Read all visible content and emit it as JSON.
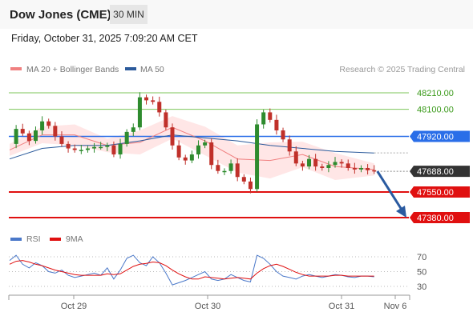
{
  "header": {
    "title": "Dow Jones (CME)",
    "timeframe": "30 MIN",
    "datetime": "Friday, October 31, 2025 7:09:20 AM CET"
  },
  "legend": {
    "items": [
      {
        "label": "MA 20 + Bollinger Bands",
        "color": "#f08080"
      },
      {
        "label": "MA 50",
        "color": "#2b5a9b"
      }
    ],
    "credit": "Research © 2025 Trading Central"
  },
  "rsi_legend": {
    "items": [
      {
        "label": "RSI",
        "color": "#4a78c9"
      },
      {
        "label": "9MA",
        "color": "#e01010"
      }
    ]
  },
  "chart_data": {
    "type": "line",
    "series": [
      {
        "name": "Price (candlestick)",
        "x": [
          0,
          4,
          8,
          12,
          16,
          20,
          24,
          28,
          32,
          36,
          40,
          44,
          48,
          52,
          56,
          60,
          64,
          68,
          72,
          76,
          80,
          84,
          88,
          92,
          96,
          100,
          104,
          108,
          112,
          116,
          120,
          124,
          128,
          132,
          136,
          140,
          144,
          148,
          152,
          156,
          160,
          164,
          168,
          172,
          176,
          180,
          184,
          188,
          192,
          196,
          200,
          204,
          208,
          212,
          216,
          220,
          224
        ],
        "values": [
          47870,
          47970,
          47940,
          47890,
          47960,
          48020,
          47990,
          47920,
          47870,
          47840,
          47830,
          47830,
          47840,
          47850,
          47850,
          47860,
          47800,
          47870,
          47950,
          47980,
          48180,
          48160,
          48150,
          48080,
          47980,
          47860,
          47780,
          47760,
          47800,
          47860,
          47880,
          47730,
          47690,
          47690,
          47740,
          47650,
          47620,
          47570,
          48000,
          48080,
          48030,
          47960,
          47900,
          47820,
          47740,
          47720,
          47770,
          47720,
          47710,
          47730,
          47750,
          47740,
          47710,
          47700,
          47710,
          47695,
          47688
        ]
      },
      {
        "name": "MA 20",
        "x": [
          0,
          20,
          40,
          60,
          80,
          100,
          120,
          140,
          160,
          180,
          200,
          224
        ],
        "values": [
          47830,
          47930,
          47930,
          47860,
          47880,
          47980,
          47890,
          47770,
          47760,
          47800,
          47720,
          47700
        ]
      },
      {
        "name": "MA 50",
        "x": [
          0,
          20,
          40,
          60,
          80,
          100,
          120,
          140,
          160,
          180,
          200,
          224
        ],
        "values": [
          47770,
          47840,
          47860,
          47860,
          47890,
          47930,
          47910,
          47890,
          47860,
          47840,
          47820,
          47810
        ]
      }
    ],
    "price_levels": [
      {
        "value": 48210.0,
        "label": "48210.00",
        "style": "resistance-thin",
        "color": "#7cc45a"
      },
      {
        "value": 48100.0,
        "label": "48100.00",
        "style": "resistance-thin",
        "color": "#7cc45a"
      },
      {
        "value": 47920.0,
        "label": "47920.00",
        "style": "pivot",
        "color": "#2a6ee8"
      },
      {
        "value": 47688.0,
        "label": "47688.00",
        "style": "last-price",
        "color": "#333333"
      },
      {
        "value": 47550.0,
        "label": "47550.00",
        "style": "support",
        "color": "#e01010"
      },
      {
        "value": 47380.0,
        "label": "47380.00",
        "style": "support",
        "color": "#e01010"
      }
    ],
    "forecast_arrow": {
      "from": 47688,
      "to": 47380,
      "color": "#2a5aa0"
    },
    "rsi": {
      "ticks": [
        "70",
        "50",
        "30"
      ],
      "tick_values": [
        70,
        50,
        30
      ],
      "rsi_values": [
        65,
        72,
        60,
        55,
        62,
        58,
        50,
        48,
        52,
        45,
        42,
        44,
        46,
        48,
        45,
        55,
        40,
        52,
        68,
        72,
        62,
        58,
        70,
        62,
        48,
        32,
        35,
        38,
        42,
        46,
        50,
        40,
        38,
        40,
        46,
        42,
        38,
        36,
        72,
        68,
        60,
        50,
        44,
        42,
        40,
        44,
        46,
        44,
        42,
        44,
        46,
        45,
        43,
        42,
        44,
        44,
        43
      ],
      "ma_values": [
        60,
        64,
        65,
        63,
        60,
        58,
        55,
        52,
        50,
        48,
        46,
        45,
        45,
        45,
        45,
        47,
        46,
        47,
        52,
        57,
        60,
        61,
        63,
        62,
        58,
        52,
        47,
        43,
        40,
        40,
        43,
        42,
        41,
        40,
        41,
        42,
        41,
        40,
        48,
        54,
        58,
        60,
        57,
        53,
        49,
        46,
        44,
        44,
        44,
        44,
        45,
        45,
        44,
        44,
        44,
        44,
        44
      ]
    },
    "x_tick_labels": [
      "Oct 29",
      "Oct 30",
      "Oct 31",
      "Nov 6"
    ],
    "ylim": [
      47320,
      48280
    ]
  }
}
